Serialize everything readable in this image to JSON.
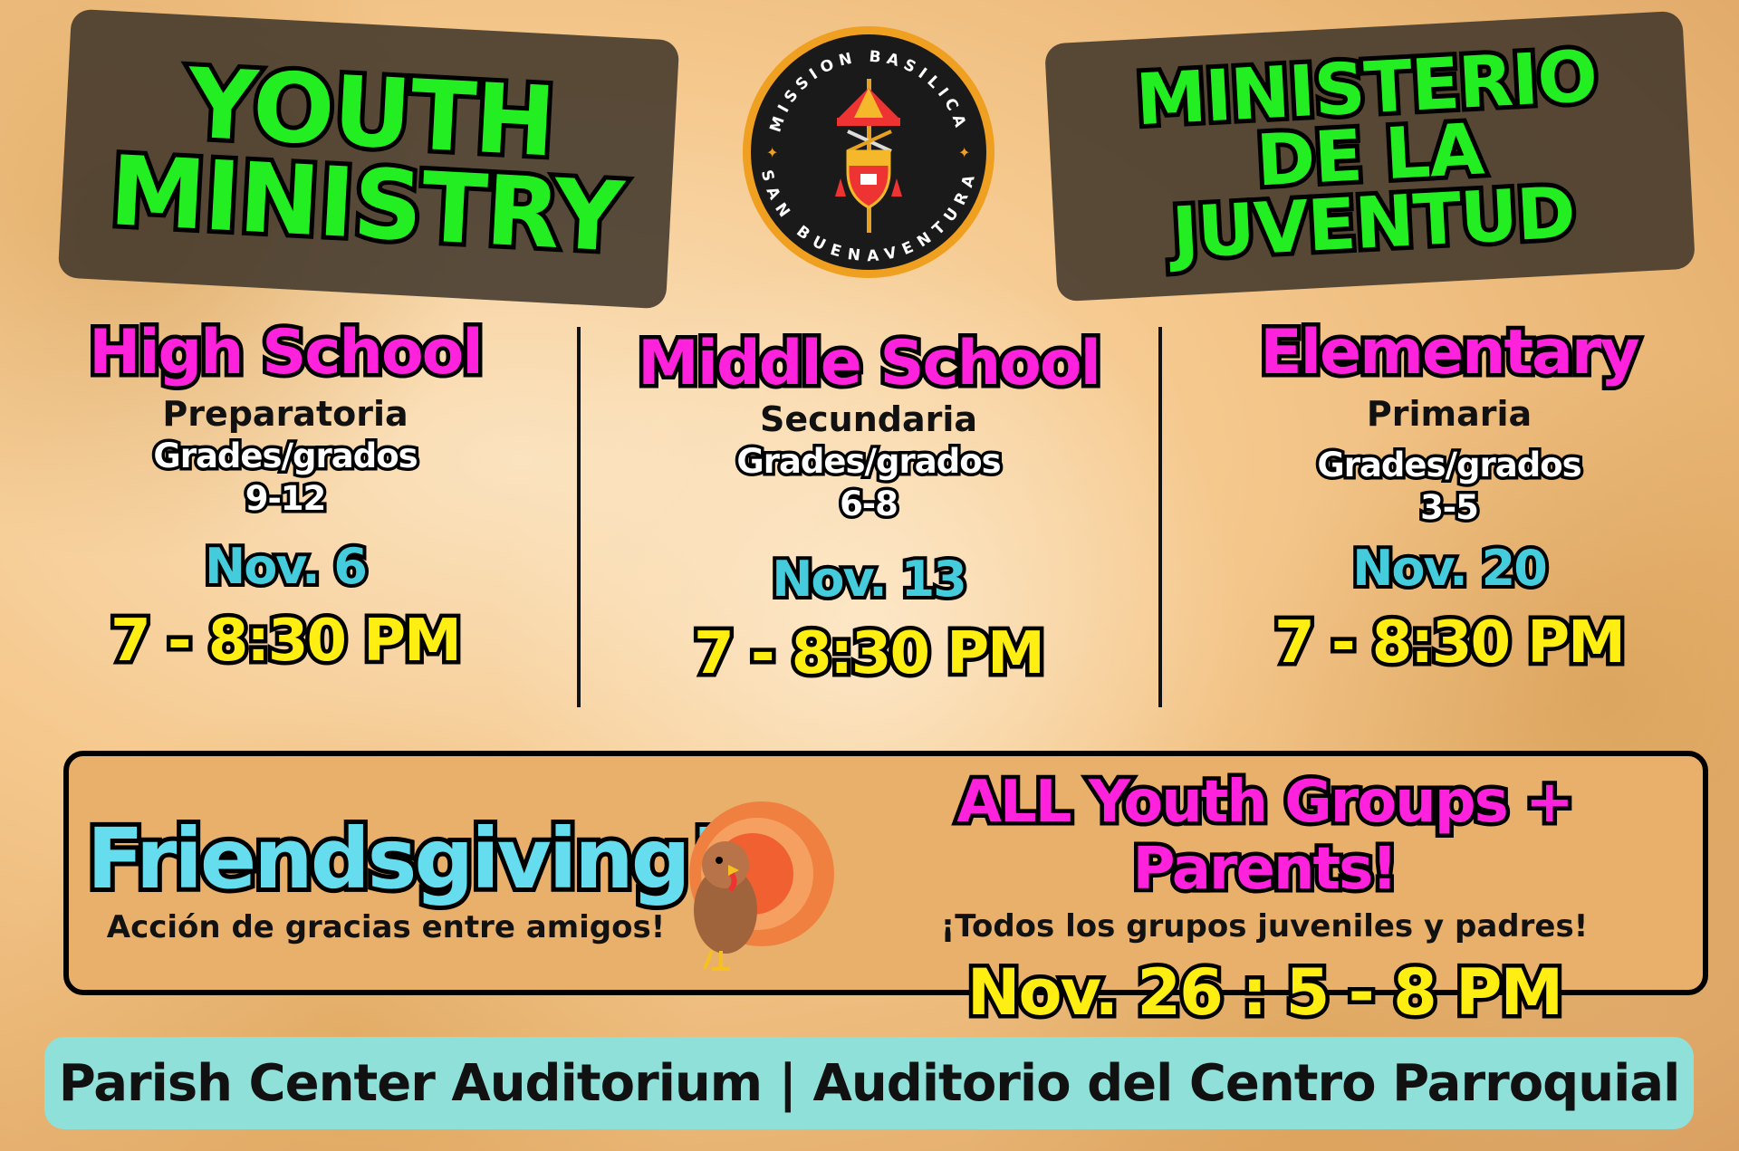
{
  "header": {
    "left_title": [
      "YOUTH",
      "MINISTRY"
    ],
    "right_title": [
      "MINISTERIO",
      "DE LA",
      "JUVENTUD"
    ],
    "logo": {
      "top_text": "MISSION BASILICA",
      "bottom_text": "SAN BUENAVENTURA",
      "colors": {
        "ring": "#f0a020",
        "disc": "#1a1a1a"
      }
    }
  },
  "colors": {
    "title_green": "#22ee22",
    "level_magenta": "#ff22dd",
    "date_cyan": "#44ccdd",
    "time_yellow": "#ffee11",
    "footer_bg": "#8fe0d8",
    "banner_bg": "#e8b06a"
  },
  "groups": [
    {
      "level": "High School",
      "spanish": "Preparatoria",
      "grades_label": "Grades/grados",
      "grades": "9-12",
      "date": "Nov. 6",
      "time": "7 - 8:30 PM"
    },
    {
      "level": "Middle School",
      "spanish": "Secundaria",
      "grades_label": "Grades/grados",
      "grades": "6-8",
      "date": "Nov. 13",
      "time": "7 - 8:30 PM"
    },
    {
      "level": "Elementary",
      "spanish": "Primaria",
      "grades_label": "Grades/grados",
      "grades": "3-5",
      "date": "Nov. 20",
      "time": "7 - 8:30 PM"
    }
  ],
  "event": {
    "title": "Friendsgiving!",
    "subtitle": "Acción de gracias entre amigos!",
    "audience": "ALL Youth Groups + Parents!",
    "audience_es": "¡Todos los grupos juveniles y padres!",
    "when": "Nov. 26 :  5 - 8 PM",
    "icon": "turkey-icon"
  },
  "footer": {
    "location": "Parish Center Auditorium | Auditorio del Centro Parroquial"
  }
}
